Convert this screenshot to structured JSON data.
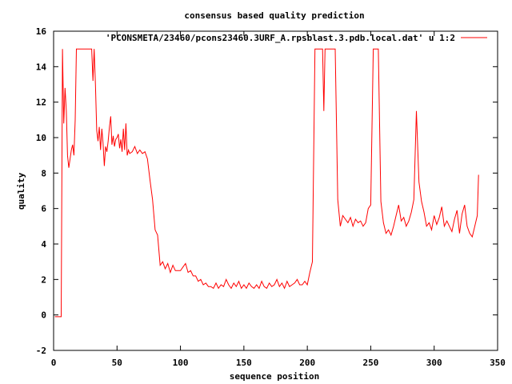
{
  "chart_data": {
    "type": "line",
    "title": "consensus based quality prediction",
    "xlabel": "sequence position",
    "ylabel": "quality",
    "xlim": [
      0,
      350
    ],
    "ylim": [
      -2,
      16
    ],
    "x_ticks": [
      0,
      50,
      100,
      150,
      200,
      250,
      300,
      350
    ],
    "y_ticks": [
      -2,
      0,
      2,
      4,
      6,
      8,
      10,
      12,
      14,
      16
    ],
    "grid": false,
    "legend_position": "top-right",
    "series": [
      {
        "name": "'PCONSMETA/23460/pcons23460.3URF_A.rpsblast.3.pdb.local.dat' u 1:2",
        "color": "#ff0000",
        "points": [
          [
            1,
            -0.1
          ],
          [
            2,
            -0.1
          ],
          [
            3,
            -0.1
          ],
          [
            4,
            -0.1
          ],
          [
            5,
            -0.1
          ],
          [
            6,
            -0.1
          ],
          [
            7,
            15.0
          ],
          [
            8,
            10.8
          ],
          [
            9,
            12.8
          ],
          [
            10,
            11.5
          ],
          [
            11,
            9.0
          ],
          [
            12,
            8.3
          ],
          [
            13,
            8.8
          ],
          [
            14,
            9.3
          ],
          [
            15,
            9.6
          ],
          [
            16,
            9.0
          ],
          [
            17,
            11.0
          ],
          [
            18,
            15.0
          ],
          [
            20,
            15.0
          ],
          [
            25,
            15.0
          ],
          [
            30,
            15.0
          ],
          [
            31,
            13.2
          ],
          [
            32,
            15.0
          ],
          [
            33,
            13.0
          ],
          [
            34,
            10.4
          ],
          [
            35,
            9.8
          ],
          [
            36,
            10.6
          ],
          [
            37,
            9.3
          ],
          [
            38,
            10.5
          ],
          [
            39,
            9.7
          ],
          [
            40,
            8.4
          ],
          [
            41,
            9.5
          ],
          [
            42,
            9.2
          ],
          [
            43,
            9.8
          ],
          [
            44,
            10.6
          ],
          [
            45,
            11.2
          ],
          [
            46,
            9.6
          ],
          [
            47,
            10.1
          ],
          [
            48,
            9.5
          ],
          [
            49,
            9.9
          ],
          [
            50,
            10.0
          ],
          [
            51,
            10.2
          ],
          [
            52,
            9.4
          ],
          [
            53,
            9.9
          ],
          [
            54,
            9.2
          ],
          [
            55,
            10.5
          ],
          [
            56,
            9.3
          ],
          [
            57,
            10.8
          ],
          [
            58,
            9.0
          ],
          [
            59,
            9.3
          ],
          [
            60,
            9.1
          ],
          [
            62,
            9.2
          ],
          [
            64,
            9.5
          ],
          [
            66,
            9.1
          ],
          [
            68,
            9.3
          ],
          [
            70,
            9.1
          ],
          [
            72,
            9.2
          ],
          [
            74,
            8.8
          ],
          [
            76,
            7.6
          ],
          [
            78,
            6.5
          ],
          [
            80,
            4.8
          ],
          [
            82,
            4.5
          ],
          [
            84,
            2.8
          ],
          [
            86,
            3.0
          ],
          [
            88,
            2.6
          ],
          [
            90,
            2.9
          ],
          [
            92,
            2.4
          ],
          [
            94,
            2.8
          ],
          [
            96,
            2.5
          ],
          [
            98,
            2.5
          ],
          [
            100,
            2.5
          ],
          [
            102,
            2.7
          ],
          [
            104,
            2.9
          ],
          [
            106,
            2.4
          ],
          [
            108,
            2.5
          ],
          [
            110,
            2.2
          ],
          [
            112,
            2.2
          ],
          [
            114,
            1.9
          ],
          [
            116,
            2.0
          ],
          [
            118,
            1.7
          ],
          [
            120,
            1.8
          ],
          [
            122,
            1.6
          ],
          [
            124,
            1.6
          ],
          [
            126,
            1.5
          ],
          [
            128,
            1.8
          ],
          [
            130,
            1.5
          ],
          [
            132,
            1.7
          ],
          [
            134,
            1.6
          ],
          [
            136,
            2.0
          ],
          [
            138,
            1.7
          ],
          [
            140,
            1.5
          ],
          [
            142,
            1.8
          ],
          [
            144,
            1.6
          ],
          [
            146,
            1.9
          ],
          [
            148,
            1.5
          ],
          [
            150,
            1.7
          ],
          [
            152,
            1.5
          ],
          [
            154,
            1.8
          ],
          [
            156,
            1.6
          ],
          [
            158,
            1.5
          ],
          [
            160,
            1.7
          ],
          [
            162,
            1.5
          ],
          [
            164,
            1.9
          ],
          [
            166,
            1.6
          ],
          [
            168,
            1.5
          ],
          [
            170,
            1.8
          ],
          [
            172,
            1.6
          ],
          [
            174,
            1.7
          ],
          [
            176,
            2.0
          ],
          [
            178,
            1.6
          ],
          [
            180,
            1.8
          ],
          [
            182,
            1.5
          ],
          [
            184,
            1.9
          ],
          [
            186,
            1.6
          ],
          [
            188,
            1.7
          ],
          [
            190,
            1.8
          ],
          [
            192,
            2.0
          ],
          [
            194,
            1.7
          ],
          [
            196,
            1.7
          ],
          [
            198,
            1.9
          ],
          [
            200,
            1.7
          ],
          [
            202,
            2.4
          ],
          [
            204,
            3.0
          ],
          [
            206,
            15.0
          ],
          [
            208,
            15.0
          ],
          [
            210,
            15.0
          ],
          [
            212,
            15.0
          ],
          [
            213,
            11.5
          ],
          [
            214,
            15.0
          ],
          [
            216,
            15.0
          ],
          [
            218,
            15.0
          ],
          [
            220,
            15.0
          ],
          [
            222,
            15.0
          ],
          [
            224,
            6.5
          ],
          [
            226,
            5.0
          ],
          [
            228,
            5.6
          ],
          [
            230,
            5.4
          ],
          [
            232,
            5.2
          ],
          [
            234,
            5.5
          ],
          [
            236,
            5.0
          ],
          [
            238,
            5.4
          ],
          [
            240,
            5.2
          ],
          [
            242,
            5.3
          ],
          [
            244,
            5.0
          ],
          [
            246,
            5.2
          ],
          [
            248,
            6.0
          ],
          [
            250,
            6.2
          ],
          [
            252,
            15.0
          ],
          [
            256,
            15.0
          ],
          [
            258,
            6.4
          ],
          [
            260,
            5.2
          ],
          [
            262,
            4.6
          ],
          [
            264,
            4.8
          ],
          [
            266,
            4.5
          ],
          [
            268,
            5.0
          ],
          [
            270,
            5.6
          ],
          [
            272,
            6.2
          ],
          [
            274,
            5.3
          ],
          [
            276,
            5.5
          ],
          [
            278,
            5.0
          ],
          [
            280,
            5.3
          ],
          [
            282,
            5.8
          ],
          [
            284,
            6.5
          ],
          [
            286,
            11.5
          ],
          [
            288,
            7.5
          ],
          [
            290,
            6.4
          ],
          [
            292,
            5.8
          ],
          [
            294,
            5.0
          ],
          [
            296,
            5.2
          ],
          [
            298,
            4.8
          ],
          [
            300,
            5.6
          ],
          [
            302,
            5.1
          ],
          [
            304,
            5.5
          ],
          [
            306,
            6.1
          ],
          [
            308,
            5.0
          ],
          [
            310,
            5.3
          ],
          [
            312,
            5.0
          ],
          [
            314,
            4.7
          ],
          [
            316,
            5.4
          ],
          [
            318,
            5.9
          ],
          [
            320,
            4.6
          ],
          [
            322,
            5.7
          ],
          [
            324,
            6.2
          ],
          [
            326,
            5.0
          ],
          [
            328,
            4.6
          ],
          [
            330,
            4.4
          ],
          [
            332,
            5.0
          ],
          [
            334,
            5.6
          ],
          [
            335,
            7.9
          ]
        ]
      }
    ]
  }
}
